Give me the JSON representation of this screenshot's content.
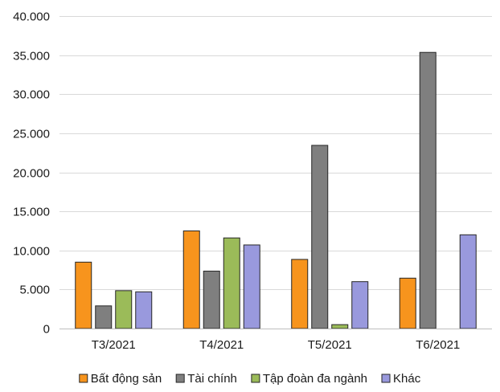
{
  "chart_data": {
    "type": "bar",
    "categories": [
      "T3/2021",
      "T4/2021",
      "T5/2021",
      "T6/2021"
    ],
    "series": [
      {
        "name": "Bất động sản",
        "color": "#f7941d",
        "values": [
          8500,
          12500,
          8850,
          6450
        ]
      },
      {
        "name": "Tài chính",
        "color": "#7f7f7f",
        "values": [
          2900,
          7350,
          23450,
          35350
        ]
      },
      {
        "name": "Tập đoàn đa ngành",
        "color": "#9bbb59",
        "values": [
          4850,
          11600,
          500,
          0
        ]
      },
      {
        "name": "Khác",
        "color": "#9999dd",
        "values": [
          4700,
          10700,
          6000,
          12000
        ]
      }
    ],
    "y_ticks": [
      "0",
      "5.000",
      "10.000",
      "15.000",
      "20.000",
      "25.000",
      "30.000",
      "35.000",
      "40.000"
    ],
    "ylim": [
      0,
      40000
    ],
    "grid": true,
    "legend_position": "bottom",
    "title": "",
    "xlabel": "",
    "ylabel": ""
  }
}
